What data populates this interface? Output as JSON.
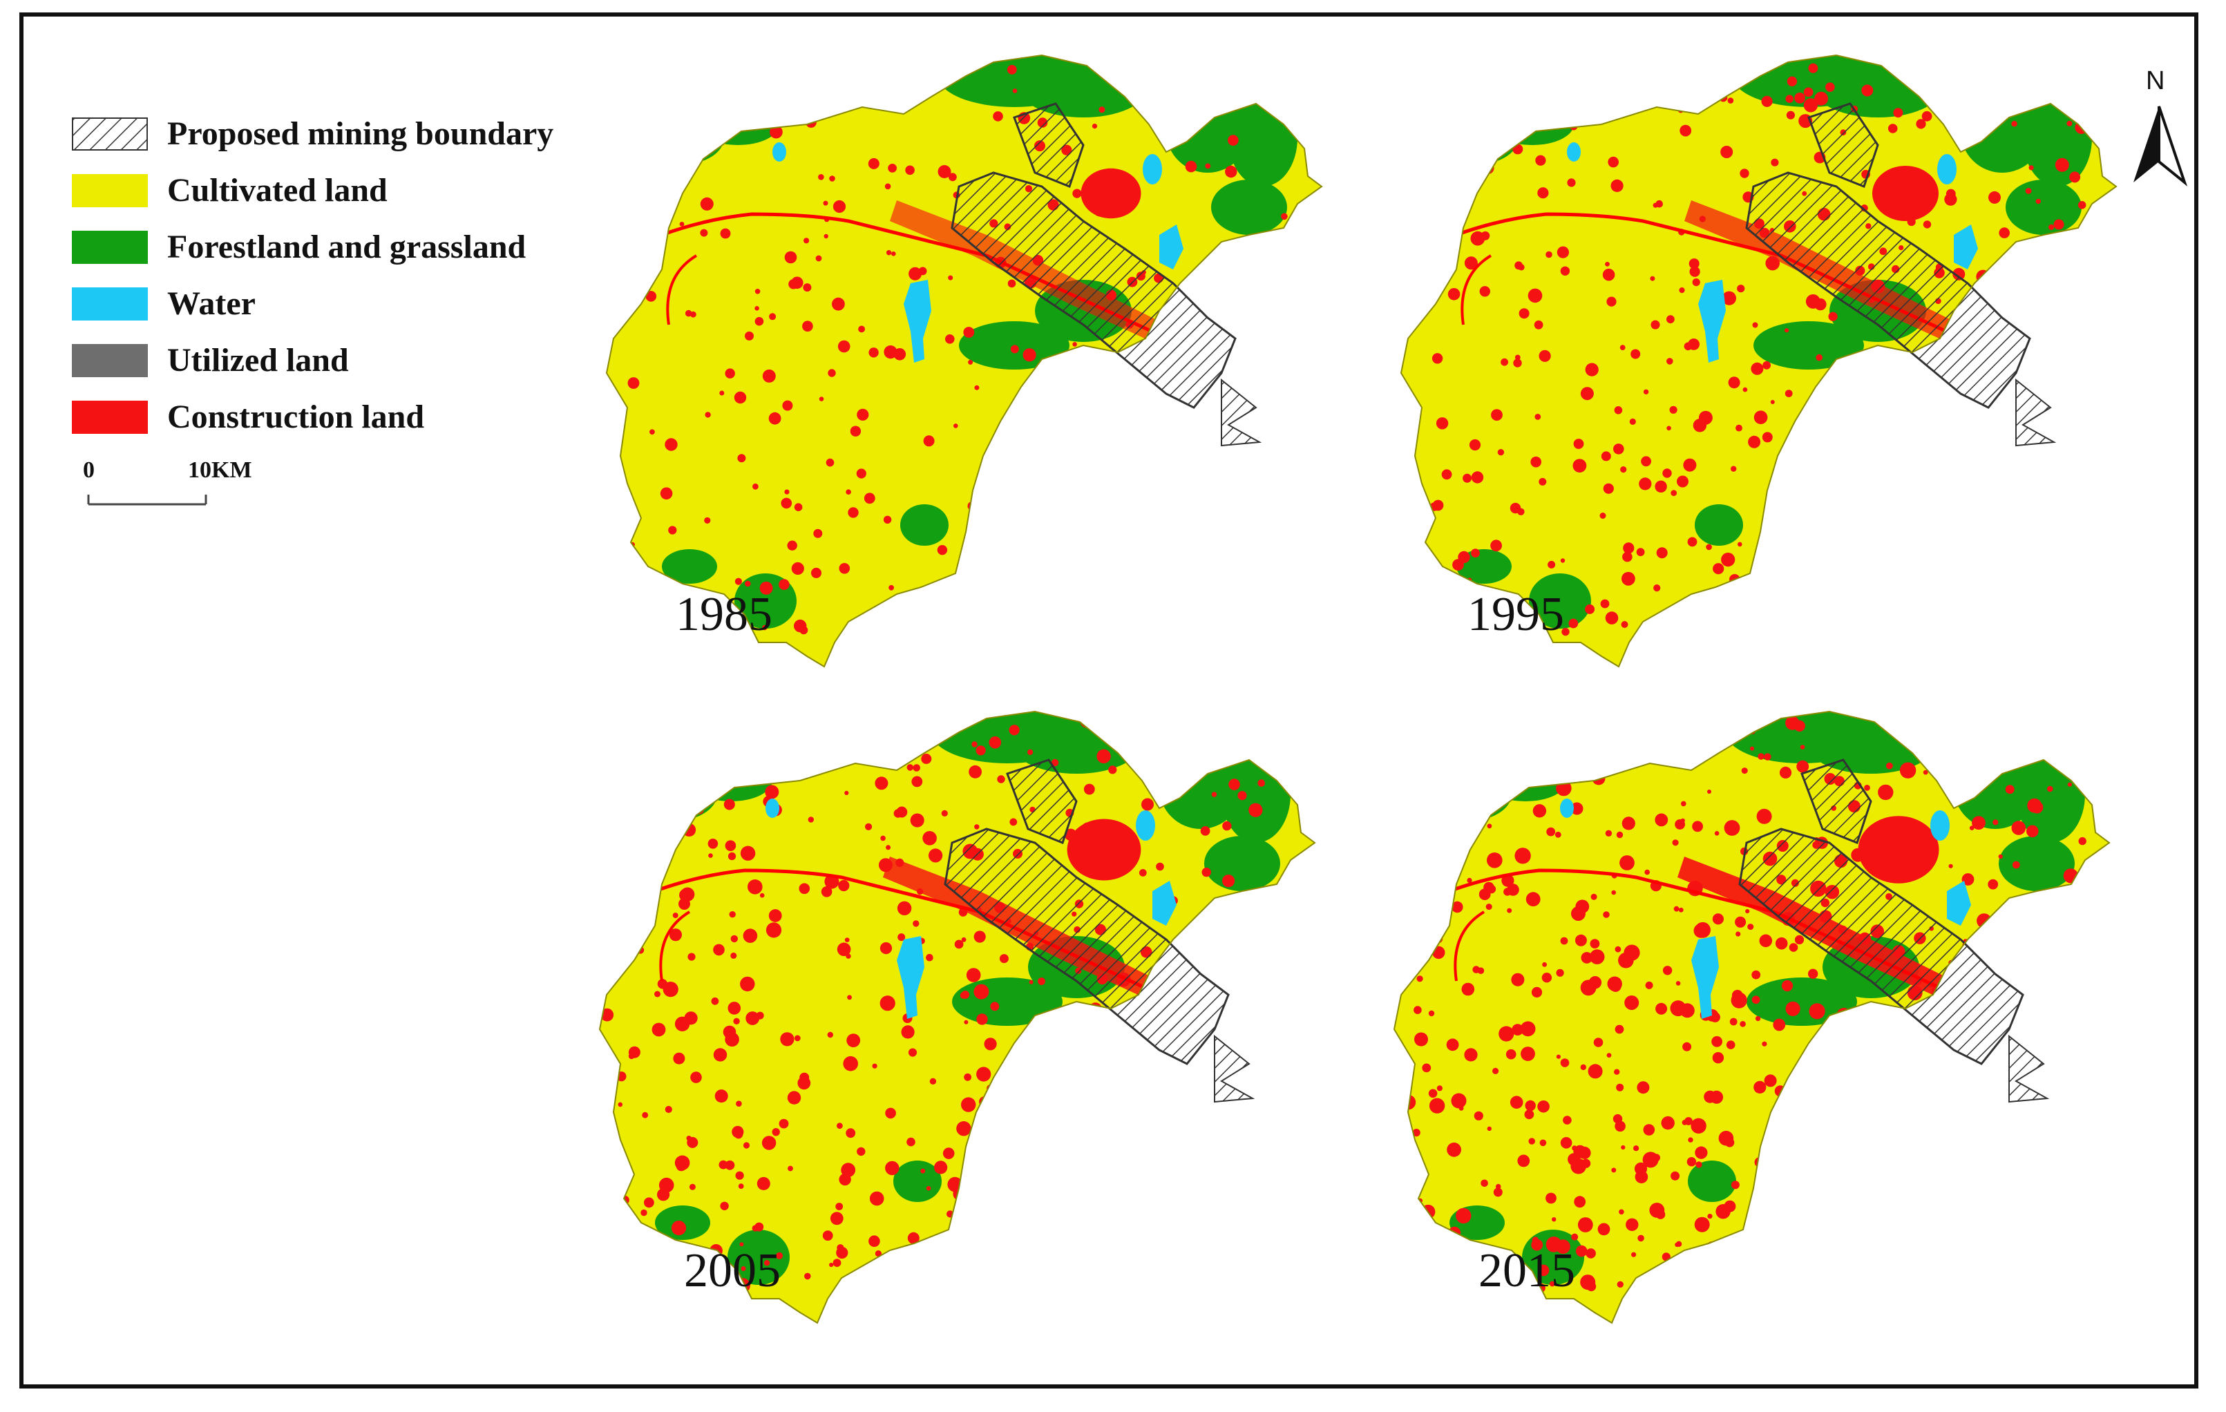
{
  "legend": {
    "items": [
      {
        "label": "Proposed mining boundary",
        "pattern": "hatched",
        "color": "#ffffff"
      },
      {
        "label": "Cultivated land",
        "color": "#ecec00"
      },
      {
        "label": "Forestland and grassland",
        "color": "#12a012"
      },
      {
        "label": "Water",
        "color": "#1ec8f5"
      },
      {
        "label": "Utilized land",
        "color": "#6e6e6e"
      },
      {
        "label": "Construction land",
        "color": "#f51212"
      }
    ]
  },
  "scale_bar": {
    "start_label": "0",
    "end_label": "10KM"
  },
  "north_arrow": {
    "label": "N",
    "icon": "north-arrow-icon"
  },
  "panels": [
    {
      "year": "1985",
      "construction_density": 0.45
    },
    {
      "year": "1995",
      "construction_density": 0.6
    },
    {
      "year": "2005",
      "construction_density": 0.78
    },
    {
      "year": "2015",
      "construction_density": 0.95
    }
  ],
  "colors": {
    "frame": "#111111",
    "boundary_hatch": "#333333",
    "road": "#ff0000"
  }
}
